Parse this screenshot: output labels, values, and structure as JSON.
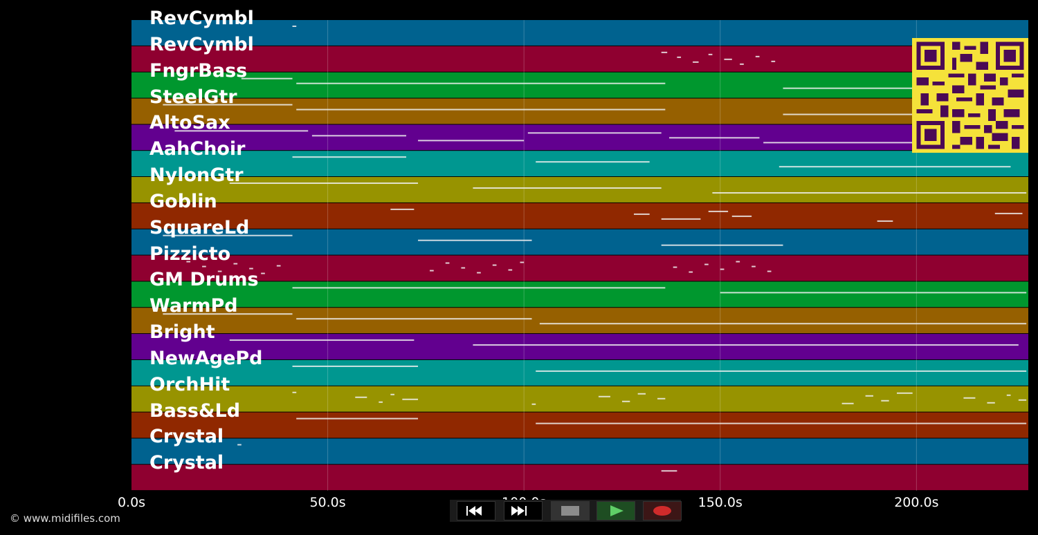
{
  "x_axis": {
    "ticks": [
      {
        "value": 0,
        "label": "0.0s"
      },
      {
        "value": 50,
        "label": "50.0s"
      },
      {
        "value": 100,
        "label": "100.0s"
      },
      {
        "value": 150,
        "label": "150.0s"
      },
      {
        "value": 200,
        "label": "200.0s"
      }
    ],
    "max": 228.5
  },
  "tracks": [
    {
      "name": "RevCymbl",
      "color": "#00628f",
      "notes": [
        [
          41,
          42
        ]
      ]
    },
    {
      "name": "RevCymbl",
      "color": "#8f0030",
      "notes": [
        [
          135,
          136.5
        ],
        [
          139,
          140
        ],
        [
          143,
          144.5
        ],
        [
          147,
          148
        ],
        [
          151,
          153
        ],
        [
          155,
          156
        ],
        [
          159,
          160
        ],
        [
          163,
          164
        ]
      ]
    },
    {
      "name": "FngrBass",
      "color": "#00972e",
      "notes": [
        [
          28,
          41
        ],
        [
          42,
          136
        ],
        [
          166,
          199
        ]
      ]
    },
    {
      "name": "SteelGtr",
      "color": "#966000",
      "notes": [
        [
          8,
          41
        ],
        [
          42,
          136
        ],
        [
          166,
          199
        ]
      ]
    },
    {
      "name": "AltoSax",
      "color": "#62008f",
      "notes": [
        [
          11,
          45
        ],
        [
          46,
          70
        ],
        [
          73,
          100
        ],
        [
          101,
          135
        ],
        [
          137,
          160
        ],
        [
          161,
          199
        ]
      ]
    },
    {
      "name": "AahChoir",
      "color": "#009790",
      "notes": [
        [
          41,
          70
        ],
        [
          103,
          132
        ],
        [
          165,
          224
        ]
      ]
    },
    {
      "name": "NylonGtr",
      "color": "#979300",
      "notes": [
        [
          25,
          73
        ],
        [
          87,
          135
        ],
        [
          148,
          228
        ]
      ]
    },
    {
      "name": "Goblin",
      "color": "#902800",
      "notes": [
        [
          66,
          72
        ],
        [
          128,
          132
        ],
        [
          135,
          145
        ],
        [
          147,
          152
        ],
        [
          153,
          158
        ],
        [
          190,
          194
        ],
        [
          220,
          227
        ]
      ]
    },
    {
      "name": "SquareLd",
      "color": "#00628f",
      "notes": [
        [
          8,
          41
        ],
        [
          73,
          102
        ],
        [
          135,
          166
        ]
      ]
    },
    {
      "name": "Pizzicto",
      "color": "#8f0030",
      "notes": [
        [
          14,
          15
        ],
        [
          18,
          19
        ],
        [
          22,
          23
        ],
        [
          26,
          27
        ],
        [
          30,
          31
        ],
        [
          33,
          34
        ],
        [
          37,
          38
        ],
        [
          76,
          77
        ],
        [
          80,
          81
        ],
        [
          84,
          85
        ],
        [
          88,
          89
        ],
        [
          92,
          93
        ],
        [
          96,
          97
        ],
        [
          99,
          100
        ],
        [
          138,
          139
        ],
        [
          142,
          143
        ],
        [
          146,
          147
        ],
        [
          150,
          151
        ],
        [
          154,
          155
        ],
        [
          158,
          159
        ],
        [
          162,
          163
        ]
      ]
    },
    {
      "name": "GM Drums",
      "color": "#00972e",
      "notes": [
        [
          41,
          136
        ],
        [
          150,
          228
        ]
      ]
    },
    {
      "name": "WarmPd",
      "color": "#966000",
      "notes": [
        [
          8,
          41
        ],
        [
          42,
          102
        ],
        [
          104,
          228
        ]
      ]
    },
    {
      "name": "Bright",
      "color": "#62008f",
      "notes": [
        [
          25,
          72
        ],
        [
          87,
          226
        ]
      ]
    },
    {
      "name": "NewAgePd",
      "color": "#009790",
      "notes": [
        [
          41,
          73
        ],
        [
          103,
          228
        ]
      ]
    },
    {
      "name": "OrchHit",
      "color": "#979300",
      "notes": [
        [
          41,
          42
        ],
        [
          57,
          60
        ],
        [
          63,
          64
        ],
        [
          66,
          67
        ],
        [
          69,
          73
        ],
        [
          102,
          103
        ],
        [
          119,
          122
        ],
        [
          125,
          127
        ],
        [
          129,
          131
        ],
        [
          134,
          136
        ],
        [
          181,
          184
        ],
        [
          187,
          189
        ],
        [
          191,
          193
        ],
        [
          195,
          199
        ],
        [
          212,
          215
        ],
        [
          218,
          220
        ],
        [
          223,
          224
        ],
        [
          226,
          228
        ]
      ]
    },
    {
      "name": "Bass&Ld",
      "color": "#902800",
      "notes": [
        [
          42,
          73
        ],
        [
          103,
          228
        ]
      ]
    },
    {
      "name": "Crystal",
      "color": "#00628f",
      "notes": [
        [
          27,
          28
        ]
      ]
    },
    {
      "name": "Crystal",
      "color": "#8f0030",
      "notes": [
        [
          135,
          139
        ]
      ]
    }
  ],
  "controls": {
    "rewind_icon": "rewind-icon",
    "fast_forward_icon": "fast-forward-icon",
    "stop_icon": "stop-icon",
    "play_icon": "play-icon",
    "record_icon": "record-icon"
  },
  "copyright": "© www.midifiles.com"
}
